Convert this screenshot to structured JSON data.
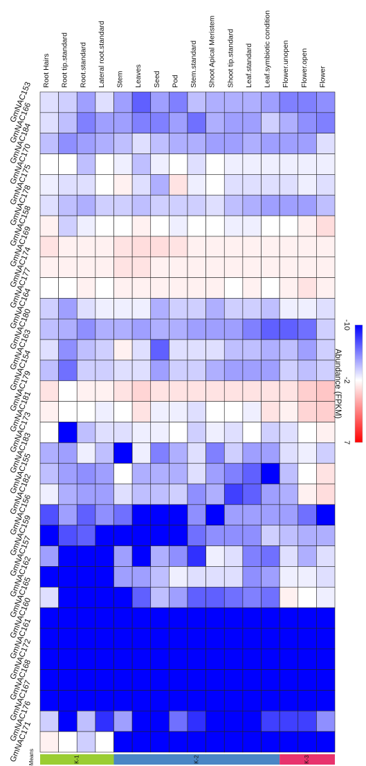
{
  "chart_data": {
    "type": "heatmap",
    "columns": [
      "Root Hairs",
      "Root tip.standard",
      "Root.standard",
      "Lateral root.standard",
      "Stem",
      "Leaves",
      "Seed",
      "Pod",
      "Stem.standard",
      "Shoot Apical Meristem",
      "Shoot tip.standard",
      "Leaf.standard",
      "Leaf.symbiotic condition",
      "Flower.unopen",
      "Flower.open",
      "Flower"
    ],
    "rows": [
      "GmNAC153",
      "GmNAC166",
      "GmNAC184",
      "GmNAC170",
      "GmNAC175",
      "GmNAC178",
      "GmNAC158",
      "GmNAC169",
      "GmNAC174",
      "GmNAC177",
      "GmNAC164",
      "GmNAC180",
      "GmNAC163",
      "GmNAC154",
      "GmNAC179",
      "GmNAC181",
      "GmNAC173",
      "GmNAC183",
      "GmNAC155",
      "GmNAC182",
      "GmNAC156",
      "GmNAC159",
      "GmNAC157",
      "GmNAC162",
      "GmNAC165",
      "GmNAC160",
      "GmNAC161",
      "GmNAC172",
      "GmNAC168",
      "GmNAC167",
      "GmNAC176",
      "GmNAC171"
    ],
    "values": [
      [
        -3,
        -3.5,
        -5,
        -3,
        -5,
        -7,
        -5,
        -6,
        -4,
        -4.5,
        -4.5,
        -4.5,
        -5,
        -6,
        -6,
        -5.5
      ],
      [
        -3,
        -4,
        -6,
        -5,
        -5,
        -6,
        -6,
        -5,
        -6.5,
        -4.5,
        -5,
        -5,
        -3.5,
        -4.5,
        -5.5,
        -6
      ],
      [
        -4,
        -5.5,
        -5,
        -4.5,
        -4,
        -3,
        -4,
        -4.5,
        -4.5,
        -5,
        -5,
        -4.5,
        -5,
        -5,
        -5,
        -3
      ],
      [
        -2,
        -2,
        -4,
        -2,
        -2.5,
        -4,
        -2.5,
        -2,
        -3,
        -2,
        -2.5,
        -2.5,
        -2.5,
        -2.5,
        -2.5,
        -2.5
      ],
      [
        -2.5,
        -3,
        -3,
        -2,
        -1.5,
        -3,
        -4.5,
        -1,
        -2.5,
        -2,
        -3,
        -3,
        -3,
        -3,
        -2.5,
        -3
      ],
      [
        -3,
        -4,
        -4.5,
        -3.5,
        -3.5,
        -4,
        -3.5,
        -3.5,
        -3.5,
        -3,
        -4,
        -4.5,
        -5,
        -5,
        -5,
        -4
      ],
      [
        -1.5,
        -3.5,
        -2.5,
        -2,
        -2,
        -1.5,
        -2,
        -2.5,
        -2,
        -2,
        -2.5,
        -2.5,
        -2,
        -2,
        -1.5,
        -0.8
      ],
      [
        -1,
        -1.5,
        -1.5,
        -1.5,
        -1,
        -0.8,
        -0.8,
        -1,
        -1.5,
        -1.5,
        -1.5,
        -1.5,
        -1.5,
        -1.5,
        -1.5,
        -1.5
      ],
      [
        -1.5,
        -1.5,
        -1.5,
        -1.5,
        -1,
        -1,
        -1.5,
        -1.5,
        -1.5,
        -1.5,
        -1.5,
        -1.5,
        -1.5,
        -1.5,
        -1.5,
        -1.5
      ],
      [
        -2,
        -2,
        -1.5,
        -2,
        -1.5,
        -1.5,
        -1.5,
        -1.5,
        -1.5,
        -1.5,
        -2,
        -1.5,
        -2,
        -1.5,
        -1,
        -1.5
      ],
      [
        -3.5,
        -5,
        -3,
        -2.5,
        -2.5,
        -2.5,
        -4.5,
        -3.5,
        -3.5,
        -4.5,
        -3.5,
        -3.5,
        -4,
        -2.5,
        -2.5,
        -3
      ],
      [
        -4,
        -4.5,
        -5.5,
        -4.5,
        -4.5,
        -5,
        -4.5,
        -4.5,
        -5,
        -5,
        -5,
        -6,
        -7,
        -7,
        -6.5,
        -3.5
      ],
      [
        -3,
        -5.5,
        -4,
        -3.5,
        -1.5,
        -3,
        -7,
        -3,
        -3,
        -3,
        -4,
        -4,
        -4.5,
        -4,
        -5,
        -3.5
      ],
      [
        -4,
        -6.5,
        -3.5,
        -3.5,
        -3,
        -3,
        -5,
        -3.5,
        -3.5,
        -4.5,
        -5,
        -5,
        -5,
        -3.5,
        -4,
        -3.5
      ],
      [
        -1,
        -2,
        -1.5,
        -1.5,
        -1,
        -0.5,
        -1,
        -1,
        -1,
        -1,
        -1,
        -1,
        -1,
        -1,
        -0.3,
        0
      ],
      [
        -1.5,
        -2,
        -2,
        -2.5,
        -2,
        -1,
        -2.5,
        -2.5,
        -3,
        -2,
        -2,
        -2.5,
        -1,
        -1.5,
        -0.5,
        -0.3
      ],
      [
        -2,
        -10,
        -4,
        -3,
        -3,
        -2.5,
        -2.5,
        -2,
        -3.5,
        -2.5,
        -3,
        -2,
        -3.5,
        -3,
        -2,
        -1.5
      ],
      [
        -4.5,
        -5,
        -2.5,
        -4,
        -10,
        -2.5,
        -6,
        -4.5,
        -3,
        -6,
        -3.5,
        -5,
        -5,
        -3,
        -2.5,
        -3.5
      ],
      [
        -4,
        -5,
        -5.5,
        -5,
        -2,
        -4.5,
        -4.5,
        -4.5,
        -3,
        -5,
        -6,
        -7,
        -10,
        -4,
        -2,
        -1
      ],
      [
        -2.5,
        -4.5,
        -5,
        -5,
        -3,
        -4,
        -4,
        -3.5,
        -5.5,
        -4.5,
        -8,
        -7,
        -5,
        -4.5,
        -1.5,
        -0.8
      ],
      [
        -7.5,
        -5,
        -7,
        -5.5,
        -6.5,
        -10,
        -10,
        -10,
        -5.5,
        -10,
        -5,
        -5,
        -5,
        -5,
        -6.5,
        -10
      ],
      [
        -10,
        -7.5,
        -7,
        -10,
        -10,
        -10,
        -10,
        -10,
        -6.5,
        -5.5,
        -5.5,
        -5.5,
        -3.5,
        -4,
        -4.5,
        -4.5
      ],
      [
        -5,
        -10,
        -10,
        -10,
        -5,
        -10,
        -4.5,
        -5.5,
        -8.5,
        -2.5,
        -3,
        -6,
        -6.5,
        -3,
        -4.5,
        -3
      ],
      [
        -10,
        -10,
        -10,
        -10,
        -5,
        -5,
        -4,
        -2.5,
        -3,
        -3,
        -3,
        -5.5,
        -5,
        -2.5,
        -2.5,
        -3
      ],
      [
        -3,
        -10,
        -10,
        -10,
        -10,
        -7,
        -4,
        -5,
        -7,
        -7,
        -6.5,
        -6,
        -6.5,
        -1.5,
        -2,
        -2.5
      ],
      [
        -10,
        -10,
        -10,
        -10,
        -10,
        -10,
        -10,
        -10,
        -10,
        -10,
        -10,
        -10,
        -10,
        -10,
        -10,
        -10
      ],
      [
        -10,
        -10,
        -10,
        -10,
        -10,
        -10,
        -10,
        -10,
        -10,
        -10,
        -10,
        -10,
        -10,
        -10,
        -10,
        -10
      ],
      [
        -10,
        -10,
        -10,
        -10,
        -10,
        -10,
        -10,
        -10,
        -10,
        -10,
        -10,
        -10,
        -10,
        -10,
        -10,
        -10
      ],
      [
        -10,
        -10,
        -10,
        -10,
        -10,
        -10,
        -10,
        -10,
        -10,
        -10,
        -10,
        -10,
        -10,
        -10,
        -10,
        -10
      ],
      [
        -10,
        -10,
        -10,
        -10,
        -10,
        -10,
        -10,
        -10,
        -10,
        -10,
        -10,
        -10,
        -10,
        -10,
        -10,
        -10
      ],
      [
        -3.5,
        -10,
        -4,
        -8.5,
        -5,
        -10,
        -10,
        -6.5,
        -8.5,
        -10,
        -10,
        -10,
        -8,
        -8,
        -8,
        -5.5
      ],
      [
        -1.5,
        -2,
        -3.5,
        -2,
        -10,
        -10,
        -10,
        -10,
        -10,
        -10,
        -10,
        -10,
        -10,
        -10,
        -10,
        -10
      ]
    ],
    "colorbar": {
      "title": "Abundance  (FPKM)",
      "ticks": [
        "-10",
        "-2",
        "7"
      ],
      "min": -10,
      "mid": -2,
      "max": 7,
      "colors": {
        "low": "#0000ff",
        "mid": "#ffffff",
        "high": "#ff0000"
      }
    },
    "kmeans": {
      "title": "k-Means",
      "groups": [
        {
          "label": "K-1",
          "start": 0,
          "end": 3,
          "color": "#9acd32"
        },
        {
          "label": "K-2",
          "start": 4,
          "end": 12,
          "color": "#4a86c5"
        },
        {
          "label": "K-3",
          "start": 13,
          "end": 15,
          "color": "#e8336d"
        }
      ]
    }
  }
}
